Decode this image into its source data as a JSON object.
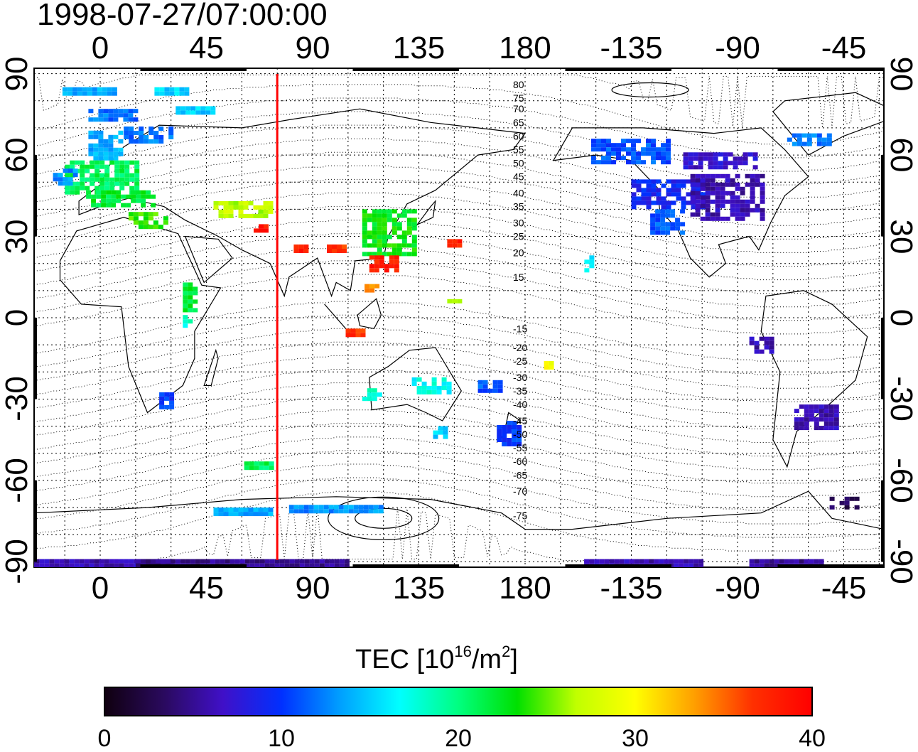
{
  "title": "1998-07-27/07:00:00",
  "longitude_ticks": [
    "0",
    "45",
    "90",
    "135",
    "180",
    "-135",
    "-90",
    "-45"
  ],
  "latitude_ticks": [
    "90",
    "60",
    "30",
    "0",
    "-30",
    "-60",
    "-90"
  ],
  "magnetic_latitude_labels": [
    "80",
    "75",
    "70",
    "65",
    "60",
    "55",
    "50",
    "45",
    "40",
    "35",
    "30",
    "25",
    "20",
    "15",
    "-15",
    "-20",
    "-25",
    "-30",
    "-35",
    "-40",
    "-45",
    "-50",
    "-55",
    "-60",
    "-65",
    "-70",
    "-75"
  ],
  "colorbar": {
    "title_text": "TEC  [10",
    "title_sup1": "16",
    "title_mid": "/m",
    "title_sup2": "2",
    "title_end": "]",
    "ticks": [
      "0",
      "10",
      "20",
      "30",
      "40"
    ],
    "min": 0,
    "max": 40,
    "stops": [
      "#100010",
      "#2a0a5e",
      "#4010c8",
      "#0030ff",
      "#00a0ff",
      "#00ffff",
      "#00ff80",
      "#00e000",
      "#c0ff00",
      "#ffff00",
      "#ffa000",
      "#ff3000",
      "#ff0000"
    ]
  },
  "marker_line": {
    "longitude": 75,
    "color": "#ff0000"
  },
  "map_data": {
    "lon_range": [
      -28,
      332
    ],
    "lat_range": [
      -92,
      92
    ],
    "tec_patches": [
      {
        "lon": -5,
        "lat": 84,
        "w": 22,
        "h": 2,
        "tec": 14
      },
      {
        "lon": 30,
        "lat": 84,
        "w": 14,
        "h": 2,
        "tec": 15
      },
      {
        "lon": 5,
        "lat": 75,
        "w": 20,
        "h": 4,
        "tec": 12
      },
      {
        "lon": 40,
        "lat": 77,
        "w": 16,
        "h": 2,
        "tec": 15
      },
      {
        "lon": 2,
        "lat": 64,
        "w": 14,
        "h": 10,
        "tec": 14
      },
      {
        "lon": 20,
        "lat": 68,
        "w": 20,
        "h": 5,
        "tec": 12
      },
      {
        "lon": 0,
        "lat": 52,
        "w": 30,
        "h": 12,
        "tec": 21
      },
      {
        "lon": 8,
        "lat": 44,
        "w": 28,
        "h": 6,
        "tec": 22
      },
      {
        "lon": 20,
        "lat": 36,
        "w": 16,
        "h": 6,
        "tec": 24
      },
      {
        "lon": -15,
        "lat": 52,
        "w": 10,
        "h": 6,
        "tec": 13
      },
      {
        "lon": 60,
        "lat": 40,
        "w": 24,
        "h": 6,
        "tec": 27
      },
      {
        "lon": 68,
        "lat": 33,
        "w": 6,
        "h": 3,
        "tec": 38
      },
      {
        "lon": 38,
        "lat": 8,
        "w": 6,
        "h": 10,
        "tec": 22
      },
      {
        "lon": 37,
        "lat": -1,
        "w": 4,
        "h": 4,
        "tec": 18
      },
      {
        "lon": 28,
        "lat": -30,
        "w": 6,
        "h": 5,
        "tec": 10
      },
      {
        "lon": 67,
        "lat": -54,
        "w": 12,
        "h": 2,
        "tec": 21
      },
      {
        "lon": 122,
        "lat": 32,
        "w": 22,
        "h": 16,
        "tec": 23
      },
      {
        "lon": 120,
        "lat": 20,
        "w": 12,
        "h": 6,
        "tec": 38
      },
      {
        "lon": 100,
        "lat": 26,
        "w": 8,
        "h": 2,
        "tec": 37
      },
      {
        "lon": 85,
        "lat": 26,
        "w": 6,
        "h": 2,
        "tec": 38
      },
      {
        "lon": 150,
        "lat": 28,
        "w": 6,
        "h": 2,
        "tec": 38
      },
      {
        "lon": 115,
        "lat": 12,
        "w": 6,
        "h": 4,
        "tec": 34
      },
      {
        "lon": 108,
        "lat": -5,
        "w": 8,
        "h": 2,
        "tec": 37
      },
      {
        "lon": 150,
        "lat": 8,
        "w": 6,
        "h": 4,
        "tec": 25
      },
      {
        "lon": 140,
        "lat": -25,
        "w": 16,
        "h": 6,
        "tec": 17
      },
      {
        "lon": 115,
        "lat": -28,
        "w": 8,
        "h": 4,
        "tec": 18
      },
      {
        "lon": 144,
        "lat": -42,
        "w": 6,
        "h": 4,
        "tec": 15
      },
      {
        "lon": 165,
        "lat": -25,
        "w": 10,
        "h": 4,
        "tec": 11
      },
      {
        "lon": 173,
        "lat": -42,
        "w": 10,
        "h": 8,
        "tec": 10
      },
      {
        "lon": 190,
        "lat": -17,
        "w": 4,
        "h": 2,
        "tec": 30
      },
      {
        "lon": 206,
        "lat": 20,
        "w": 6,
        "h": 6,
        "tec": 16
      },
      {
        "lon": 224,
        "lat": 62,
        "w": 32,
        "h": 8,
        "tec": 11
      },
      {
        "lon": 240,
        "lat": 46,
        "w": 30,
        "h": 10,
        "tec": 9
      },
      {
        "lon": 265,
        "lat": 45,
        "w": 30,
        "h": 16,
        "tec": 6
      },
      {
        "lon": 240,
        "lat": 36,
        "w": 14,
        "h": 8,
        "tec": 11
      },
      {
        "lon": 262,
        "lat": 58,
        "w": 30,
        "h": 6,
        "tec": 7
      },
      {
        "lon": 300,
        "lat": 66,
        "w": 18,
        "h": 4,
        "tec": 12
      },
      {
        "lon": 280,
        "lat": -10,
        "w": 10,
        "h": 6,
        "tec": 6
      },
      {
        "lon": 303,
        "lat": -36,
        "w": 18,
        "h": 8,
        "tec": 6
      },
      {
        "lon": 315,
        "lat": -68,
        "w": 12,
        "h": 4,
        "tec": 3
      },
      {
        "lon": 100,
        "lat": -70,
        "w": 40,
        "h": 2,
        "tec": 13
      },
      {
        "lon": 60,
        "lat": -71,
        "w": 24,
        "h": 2,
        "tec": 14
      },
      {
        "lon": 0,
        "lat": -90,
        "w": 60,
        "h": 2,
        "tec": 6
      },
      {
        "lon": 60,
        "lat": -90,
        "w": 90,
        "h": 2,
        "tec": 5
      },
      {
        "lon": 230,
        "lat": -90,
        "w": 50,
        "h": 2,
        "tec": 6
      },
      {
        "lon": 290,
        "lat": -90,
        "w": 30,
        "h": 2,
        "tec": 5
      }
    ]
  }
}
